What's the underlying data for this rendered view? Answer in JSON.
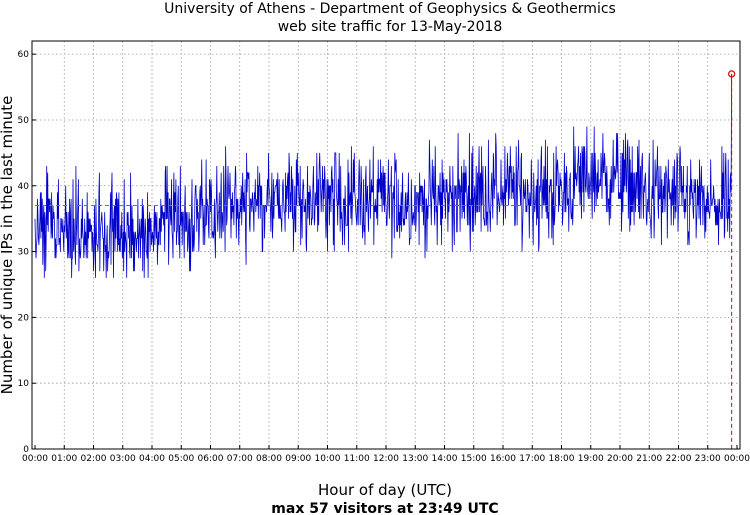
{
  "chart_data": {
    "type": "line",
    "title": "University of Athens - Department of Geophysics & Geothermics",
    "subtitle": "web site traffic for 13-May-2018",
    "xlabel": "Hour of day (UTC)",
    "ylabel": "Number of unique IPs in the last minute",
    "footer": "max 57 visitors at 23:49 UTC",
    "xlim": [
      0,
      24
    ],
    "ylim": [
      0,
      62
    ],
    "yticks": [
      0,
      10,
      20,
      30,
      40,
      50,
      60
    ],
    "xtick_labels": [
      "00:00",
      "01:00",
      "02:00",
      "03:00",
      "04:00",
      "05:00",
      "06:00",
      "07:00",
      "08:00",
      "09:00",
      "10:00",
      "11:00",
      "12:00",
      "13:00",
      "14:00",
      "15:00",
      "16:00",
      "17:00",
      "18:00",
      "19:00",
      "20:00",
      "21:00",
      "22:00",
      "23:00",
      "00:00"
    ],
    "grid": true,
    "colors": {
      "series": "#0000cc",
      "average": "#22aa22",
      "max": "#dd0000"
    },
    "series": [
      {
        "kind": "traffic",
        "hourly_mean": [
          [
            0,
            34
          ],
          [
            1,
            33.5
          ],
          [
            2,
            33
          ],
          [
            3,
            32.5
          ],
          [
            4,
            33
          ],
          [
            5,
            34
          ],
          [
            6,
            36
          ],
          [
            7,
            37
          ],
          [
            8,
            37.5
          ],
          [
            9,
            38
          ],
          [
            10,
            38
          ],
          [
            11,
            38
          ],
          [
            12,
            37.5
          ],
          [
            13,
            37.5
          ],
          [
            14,
            38
          ],
          [
            15,
            39
          ],
          [
            16,
            39.5
          ],
          [
            17,
            38.5
          ],
          [
            18,
            39
          ],
          [
            19,
            41.5
          ],
          [
            20,
            41
          ],
          [
            21,
            38.5
          ],
          [
            22,
            38
          ],
          [
            23,
            36.5
          ],
          [
            24,
            37
          ]
        ]
      },
      {
        "kind": "average",
        "value": 37
      },
      {
        "kind": "max",
        "x": 23.817,
        "y": 57
      }
    ]
  }
}
